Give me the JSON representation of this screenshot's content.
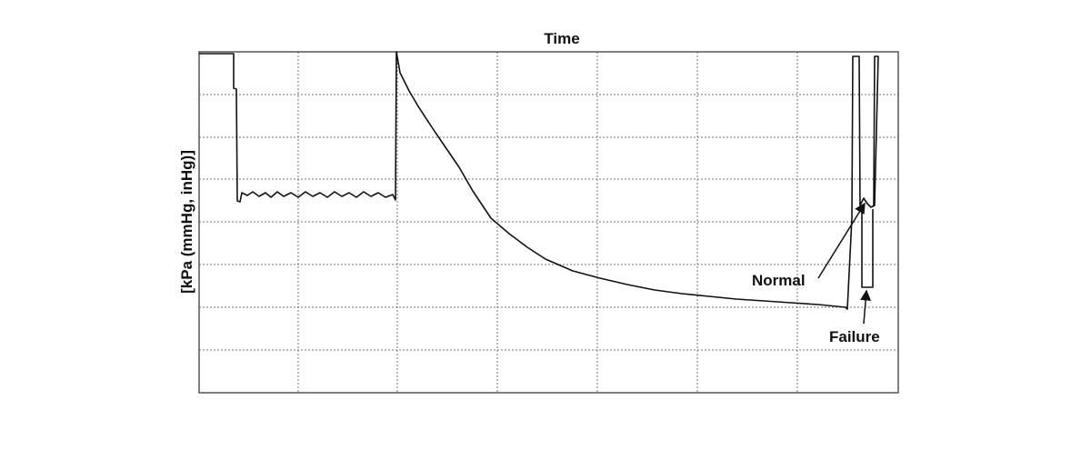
{
  "title": "Time",
  "y_axis_label": "[kPa (mmHg, inHg)]",
  "annotations": [
    "Normal",
    "Failure"
  ]
}
